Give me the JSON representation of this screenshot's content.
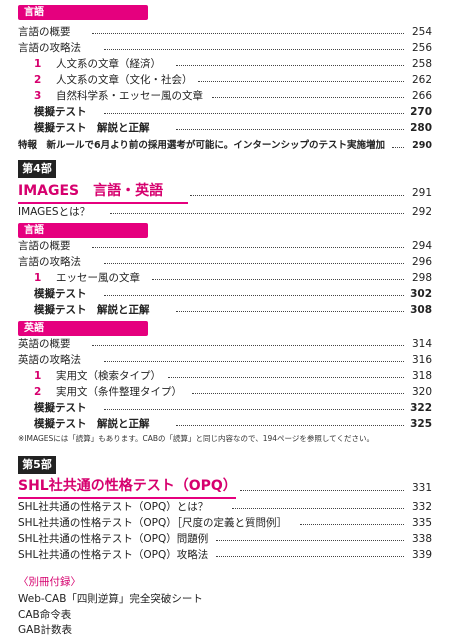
{
  "accent": "#e5007e",
  "s1": {
    "header": "言語",
    "overview": {
      "label": "言語の概要",
      "page": "254"
    },
    "strategy": {
      "label": "言語の攻略法",
      "page": "256"
    },
    "items": [
      {
        "n": "1",
        "label": "人文系の文章（経済）",
        "page": "258"
      },
      {
        "n": "2",
        "label": "人文系の文章（文化・社会）",
        "page": "262"
      },
      {
        "n": "3",
        "label": "自然科学系・エッセー風の文章",
        "page": "266"
      }
    ],
    "mock": {
      "label": "模擬テスト",
      "page": "270"
    },
    "answers": {
      "label": "模擬テスト　解説と正解",
      "page": "280"
    }
  },
  "special": {
    "label": "特報　新ルールで6月より前の採用選考が可能に。インターンシップのテスト実施増加",
    "page": "290"
  },
  "part4": {
    "badge": "第4部",
    "title": "IMAGES　言語・英語",
    "title_page": "291",
    "what": {
      "label": "IMAGESとは？",
      "page": "292"
    },
    "lang_header": "言語",
    "lang_overview": {
      "label": "言語の概要",
      "page": "294"
    },
    "lang_strategy": {
      "label": "言語の攻略法",
      "page": "296"
    },
    "lang_item": {
      "n": "1",
      "label": "エッセー風の文章",
      "page": "298"
    },
    "lang_mock": {
      "label": "模擬テスト",
      "page": "302"
    },
    "lang_answers": {
      "label": "模擬テスト　解説と正解",
      "page": "308"
    },
    "eng_header": "英語",
    "eng_overview": {
      "label": "英語の概要",
      "page": "314"
    },
    "eng_strategy": {
      "label": "英語の攻略法",
      "page": "316"
    },
    "eng_items": [
      {
        "n": "1",
        "label": "実用文（検索タイプ）",
        "page": "318"
      },
      {
        "n": "2",
        "label": "実用文（条件整理タイプ）",
        "page": "320"
      }
    ],
    "eng_mock": {
      "label": "模擬テスト",
      "page": "322"
    },
    "eng_answers": {
      "label": "模擬テスト　解説と正解",
      "page": "325"
    },
    "note": "※IMAGESには「読算」もあります。CABの「読算」と同じ内容なので、194ページを参照してください。"
  },
  "part5": {
    "badge": "第5部",
    "title": "SHL社共通の性格テスト（OPQ）",
    "title_page": "331",
    "items": [
      {
        "label": "SHL社共通の性格テスト（OPQ）とは？",
        "page": "332"
      },
      {
        "label": "SHL社共通の性格テスト（OPQ）［尺度の定義と質問例］",
        "page": "335"
      },
      {
        "label": "SHL社共通の性格テスト（OPQ）問題例",
        "page": "338"
      },
      {
        "label": "SHL社共通の性格テスト（OPQ）攻略法",
        "page": "339"
      }
    ]
  },
  "appendix": {
    "title": "〈別冊付録〉",
    "items": [
      "Web-CAB「四則逆算」完全突破シート",
      "CAB命令表",
      "GAB計数表"
    ]
  }
}
